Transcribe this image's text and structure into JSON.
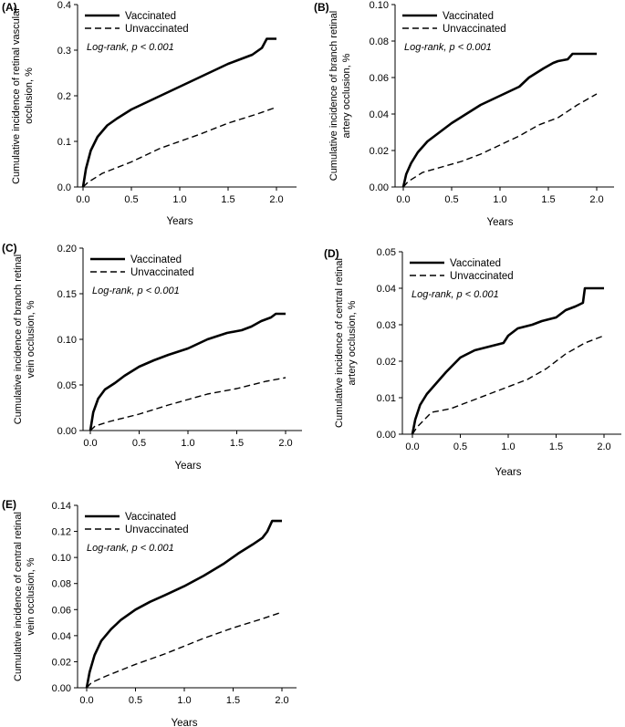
{
  "chart_data": [
    {
      "type": "line",
      "panel_label": "(A)",
      "ylabel": [
        "Cumulative incidence of retinal vascular",
        "occlusion, %"
      ],
      "xlabel": "Years",
      "xlim": [
        0,
        2.0
      ],
      "ylim": [
        0,
        0.4
      ],
      "x_ticks": [
        "0.0",
        "0.5",
        "1.0",
        "1.5",
        "2.0"
      ],
      "y_ticks": [
        "0.0",
        "0.1",
        "0.2",
        "0.3",
        "0.4"
      ],
      "legend": "top-left",
      "annotation": "Log-rank, p < 0.001",
      "series": [
        {
          "name": "Vaccinated",
          "x": [
            0,
            0.03,
            0.08,
            0.15,
            0.25,
            0.35,
            0.5,
            0.6,
            0.75,
            0.9,
            1.0,
            1.1,
            1.25,
            1.4,
            1.5,
            1.6,
            1.75,
            1.85,
            1.9,
            2.0
          ],
          "y": [
            0,
            0.04,
            0.08,
            0.11,
            0.135,
            0.15,
            0.17,
            0.18,
            0.195,
            0.21,
            0.22,
            0.23,
            0.245,
            0.26,
            0.27,
            0.278,
            0.29,
            0.305,
            0.325,
            0.325
          ]
        },
        {
          "name": "Unvaccinated",
          "x": [
            0,
            0.05,
            0.2,
            0.5,
            0.8,
            1.0,
            1.2,
            1.5,
            1.8,
            2.0
          ],
          "y": [
            0,
            0.01,
            0.03,
            0.055,
            0.085,
            0.1,
            0.115,
            0.14,
            0.16,
            0.175
          ]
        }
      ]
    },
    {
      "type": "line",
      "panel_label": "(B)",
      "ylabel": [
        "Cumulative incidence of branch retinal",
        "artery occlusion, %"
      ],
      "xlabel": "Years",
      "xlim": [
        0,
        2.0
      ],
      "ylim": [
        0,
        0.1
      ],
      "x_ticks": [
        "0.0",
        "0.5",
        "1.0",
        "1.5",
        "2.0"
      ],
      "y_ticks": [
        "0.00",
        "0.02",
        "0.04",
        "0.06",
        "0.08",
        "0.10"
      ],
      "legend": "top-left",
      "annotation": "Log-rank, p < 0.001",
      "series": [
        {
          "name": "Vaccinated",
          "x": [
            0,
            0.03,
            0.08,
            0.15,
            0.25,
            0.35,
            0.5,
            0.65,
            0.8,
            1.0,
            1.2,
            1.3,
            1.45,
            1.55,
            1.6,
            1.7,
            1.75,
            2.0
          ],
          "y": [
            0,
            0.007,
            0.013,
            0.019,
            0.025,
            0.029,
            0.035,
            0.04,
            0.045,
            0.05,
            0.055,
            0.06,
            0.065,
            0.068,
            0.069,
            0.07,
            0.073,
            0.073
          ]
        },
        {
          "name": "Unvaccinated",
          "x": [
            0,
            0.05,
            0.2,
            0.4,
            0.6,
            0.8,
            1.0,
            1.2,
            1.4,
            1.6,
            1.8,
            2.0
          ],
          "y": [
            0,
            0.003,
            0.008,
            0.011,
            0.014,
            0.018,
            0.023,
            0.028,
            0.034,
            0.038,
            0.045,
            0.051
          ]
        }
      ]
    },
    {
      "type": "line",
      "panel_label": "(C)",
      "ylabel": [
        "Cumulative incidence of branch retinal",
        "vein occlusion, %"
      ],
      "xlabel": "Years",
      "xlim": [
        0,
        2.0
      ],
      "ylim": [
        0,
        0.2
      ],
      "x_ticks": [
        "0.0",
        "0.5",
        "1.0",
        "1.5",
        "2.0"
      ],
      "y_ticks": [
        "0.00",
        "0.05",
        "0.10",
        "0.15",
        "0.20"
      ],
      "legend": "top-left",
      "annotation": "Log-rank, p < 0.001",
      "series": [
        {
          "name": "Vaccinated",
          "x": [
            0,
            0.03,
            0.08,
            0.15,
            0.25,
            0.35,
            0.5,
            0.65,
            0.8,
            1.0,
            1.2,
            1.4,
            1.55,
            1.65,
            1.75,
            1.85,
            1.9,
            2.0
          ],
          "y": [
            0,
            0.02,
            0.035,
            0.045,
            0.052,
            0.06,
            0.07,
            0.077,
            0.083,
            0.09,
            0.1,
            0.107,
            0.11,
            0.114,
            0.12,
            0.124,
            0.128,
            0.128
          ]
        },
        {
          "name": "Unvaccinated",
          "x": [
            0,
            0.05,
            0.2,
            0.5,
            0.8,
            1.0,
            1.2,
            1.5,
            1.8,
            2.0
          ],
          "y": [
            0,
            0.005,
            0.01,
            0.018,
            0.028,
            0.034,
            0.04,
            0.046,
            0.054,
            0.058
          ]
        }
      ]
    },
    {
      "type": "line",
      "panel_label": "(D)",
      "ylabel": [
        "Cumulative incidence of central retinal",
        "artery occlusion, %"
      ],
      "xlabel": "Years",
      "xlim": [
        0,
        2.0
      ],
      "ylim": [
        0,
        0.05
      ],
      "x_ticks": [
        "0.0",
        "0.5",
        "1.0",
        "1.5",
        "2.0"
      ],
      "y_ticks": [
        "0.00",
        "0.01",
        "0.02",
        "0.03",
        "0.04",
        "0.05"
      ],
      "legend": "top-left",
      "annotation": "Log-rank, p < 0.001",
      "series": [
        {
          "name": "Vaccinated",
          "x": [
            0,
            0.03,
            0.08,
            0.15,
            0.25,
            0.35,
            0.5,
            0.65,
            0.8,
            0.95,
            1.0,
            1.1,
            1.25,
            1.35,
            1.5,
            1.6,
            1.7,
            1.78,
            1.8,
            2.0
          ],
          "y": [
            0,
            0.004,
            0.008,
            0.011,
            0.014,
            0.017,
            0.021,
            0.023,
            0.024,
            0.025,
            0.027,
            0.029,
            0.03,
            0.031,
            0.032,
            0.034,
            0.035,
            0.036,
            0.04,
            0.04
          ]
        },
        {
          "name": "Unvaccinated",
          "x": [
            0,
            0.05,
            0.2,
            0.4,
            0.6,
            0.8,
            1.0,
            1.2,
            1.4,
            1.6,
            1.8,
            2.0
          ],
          "y": [
            0,
            0.002,
            0.006,
            0.007,
            0.009,
            0.011,
            0.013,
            0.015,
            0.018,
            0.022,
            0.025,
            0.027
          ]
        }
      ]
    },
    {
      "type": "line",
      "panel_label": "(E)",
      "ylabel": [
        "Cumulative incidence of central retinal",
        "vein occlusion, %"
      ],
      "xlabel": "Years",
      "xlim": [
        0,
        2.0
      ],
      "ylim": [
        0,
        0.14
      ],
      "x_ticks": [
        "0.0",
        "0.5",
        "1.0",
        "1.5",
        "2.0"
      ],
      "y_ticks": [
        "0.00",
        "0.02",
        "0.04",
        "0.06",
        "0.08",
        "0.10",
        "0.12",
        "0.14"
      ],
      "legend": "top-left",
      "annotation": "Log-rank, p < 0.001",
      "series": [
        {
          "name": "Vaccinated",
          "x": [
            0,
            0.03,
            0.08,
            0.15,
            0.25,
            0.35,
            0.5,
            0.65,
            0.8,
            1.0,
            1.2,
            1.4,
            1.55,
            1.7,
            1.8,
            1.85,
            1.9,
            2.0
          ],
          "y": [
            0,
            0.012,
            0.025,
            0.036,
            0.045,
            0.052,
            0.06,
            0.066,
            0.071,
            0.078,
            0.086,
            0.095,
            0.103,
            0.11,
            0.115,
            0.12,
            0.128,
            0.128
          ]
        },
        {
          "name": "Unvaccinated",
          "x": [
            0,
            0.05,
            0.2,
            0.5,
            0.8,
            1.0,
            1.2,
            1.5,
            1.8,
            2.0
          ],
          "y": [
            0,
            0.004,
            0.009,
            0.018,
            0.026,
            0.032,
            0.038,
            0.046,
            0.053,
            0.058
          ]
        }
      ]
    }
  ]
}
